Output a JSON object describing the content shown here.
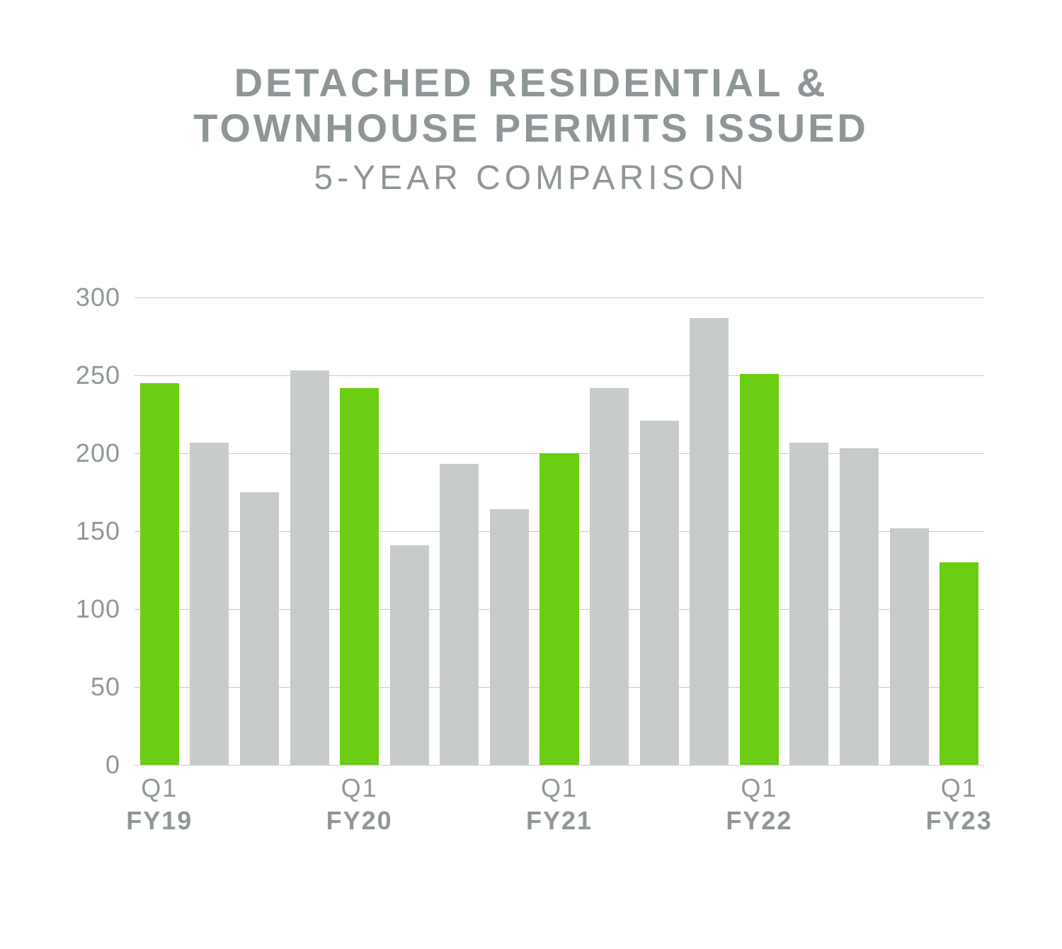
{
  "title_line1": "DETACHED RESIDENTIAL &",
  "title_line2": "TOWNHOUSE PERMITS ISSUED",
  "subtitle": "5-YEAR COMPARISON",
  "chart": {
    "type": "bar",
    "ylim": [
      0,
      300
    ],
    "ytick_step": 50,
    "yticks": [
      0,
      50,
      100,
      150,
      200,
      250,
      300
    ],
    "grid_color": "#c7cbcc",
    "background_color": "#ffffff",
    "text_color": "#8f9698",
    "highlight_color": "#6cce12",
    "default_color": "#c7cbcc",
    "axis_fontsize": 36,
    "title_fontsize": 56,
    "subtitle_fontsize": 48,
    "bar_width_ratio": 0.78,
    "bars": [
      {
        "value": 245,
        "highlight": true,
        "q_label": "Q1",
        "fy_label": "FY19"
      },
      {
        "value": 207,
        "highlight": false
      },
      {
        "value": 175,
        "highlight": false
      },
      {
        "value": 253,
        "highlight": false
      },
      {
        "value": 242,
        "highlight": true,
        "q_label": "Q1",
        "fy_label": "FY20"
      },
      {
        "value": 141,
        "highlight": false
      },
      {
        "value": 193,
        "highlight": false
      },
      {
        "value": 164,
        "highlight": false
      },
      {
        "value": 200,
        "highlight": true,
        "q_label": "Q1",
        "fy_label": "FY21"
      },
      {
        "value": 242,
        "highlight": false
      },
      {
        "value": 221,
        "highlight": false
      },
      {
        "value": 287,
        "highlight": false
      },
      {
        "value": 251,
        "highlight": true,
        "q_label": "Q1",
        "fy_label": "FY22"
      },
      {
        "value": 207,
        "highlight": false
      },
      {
        "value": 203,
        "highlight": false
      },
      {
        "value": 152,
        "highlight": false
      },
      {
        "value": 130,
        "highlight": true,
        "q_label": "Q1",
        "fy_label": "FY23"
      }
    ]
  }
}
